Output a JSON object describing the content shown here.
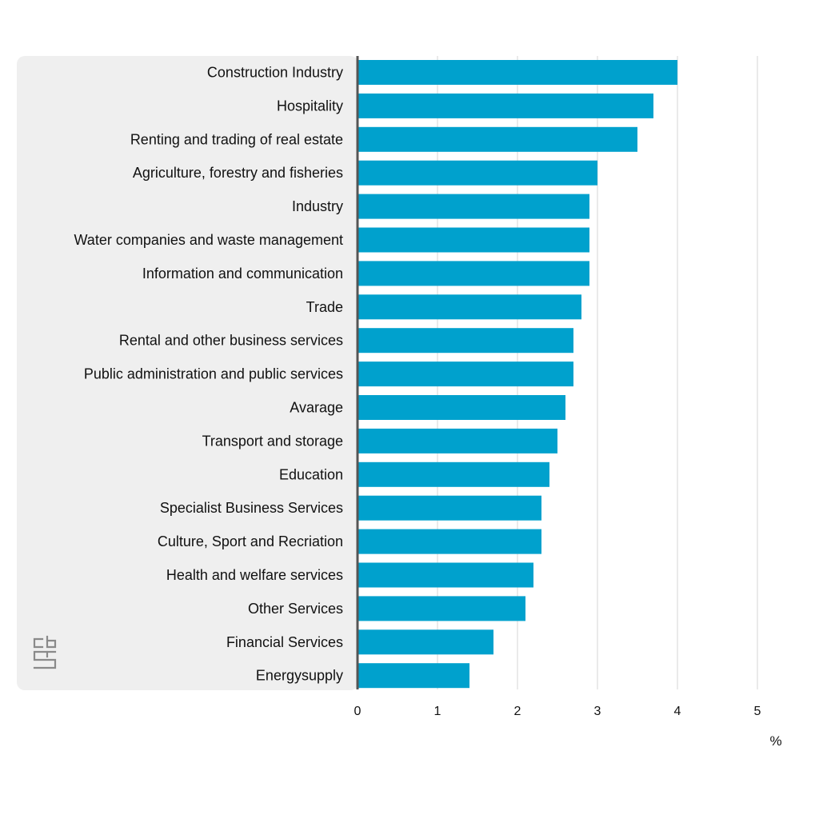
{
  "chart_data": {
    "type": "bar",
    "orientation": "horizontal",
    "categories": [
      "Construction Industry",
      "Hospitality",
      "Renting and trading of real estate",
      "Agriculture, forestry and fisheries",
      "Industry",
      "Water companies and waste management",
      "Information and communication",
      "Trade",
      "Rental and other business services",
      "Public administration and public services",
      "Avarage",
      "Transport and storage",
      "Education",
      "Specialist Business Services",
      "Culture, Sport and Recriation",
      "Health and welfare services",
      "Other Services",
      "Financial Services",
      "Energysupply"
    ],
    "values": [
      4.0,
      3.7,
      3.5,
      3.0,
      2.9,
      2.9,
      2.9,
      2.8,
      2.7,
      2.7,
      2.6,
      2.5,
      2.4,
      2.3,
      2.3,
      2.2,
      2.1,
      1.7,
      1.4
    ],
    "xlim": [
      0,
      5
    ],
    "xticks": [
      "0",
      "1",
      "2",
      "3",
      "4",
      "5"
    ],
    "xlabel": "%",
    "grid": "vertical",
    "bar_color": "#00a1cd",
    "label_panel_color": "#efefef",
    "gridline_color": "#d5d5d5",
    "axis_color": "#555555",
    "logo_text": "cbs",
    "logo_icon": "cbs-logo-icon"
  }
}
